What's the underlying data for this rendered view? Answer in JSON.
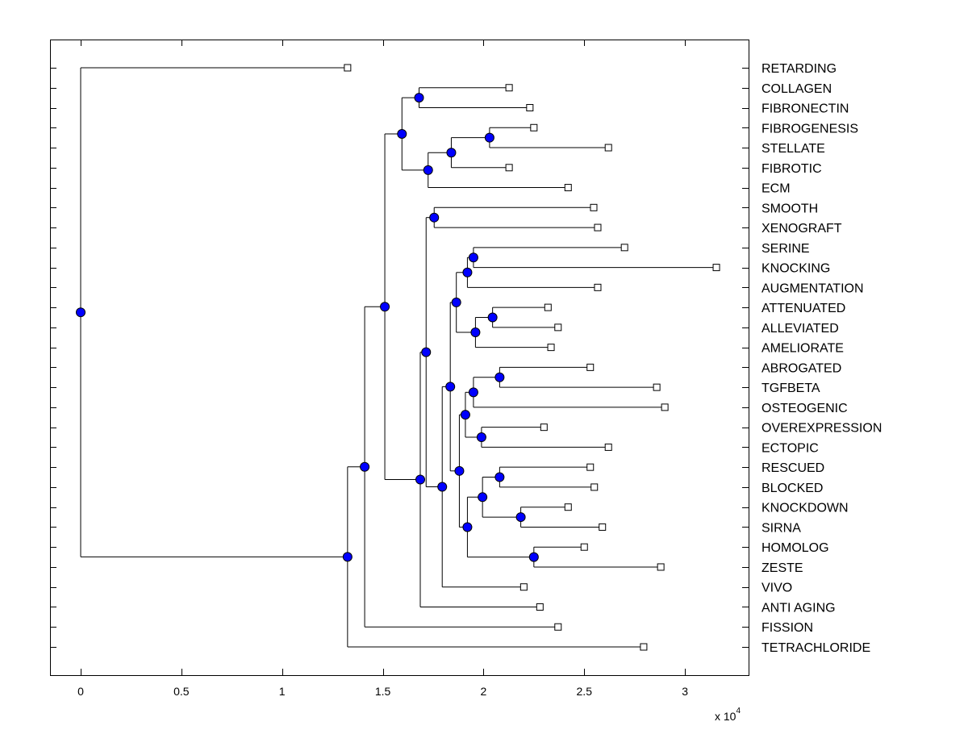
{
  "chart_data": {
    "type": "dendrogram",
    "title": "",
    "xlabel": "",
    "ylabel": "",
    "x_multiplier_label": "x 10",
    "x_multiplier_exponent": "4",
    "xlim": [
      -0.15,
      3.32
    ],
    "xticks": [
      0,
      0.5,
      1,
      1.5,
      2,
      2.5,
      3
    ],
    "xtick_labels": [
      "0",
      "0.5",
      "1",
      "1.5",
      "2",
      "2.5",
      "3"
    ],
    "grid": false,
    "colors": {
      "internal_node": "#0000ff",
      "leaf_marker": "#ffffff",
      "line": "#000000"
    },
    "leaves": [
      "RETARDING",
      "COLLAGEN",
      "FIBRONECTIN",
      "FIBROGENESIS",
      "STELLATE",
      "FIBROTIC",
      "ECM",
      "SMOOTH",
      "XENOGRAFT",
      "SERINE",
      "KNOCKING",
      "AUGMENTATION",
      "ATTENUATED",
      "ALLEVIATED",
      "AMELIORATE",
      "ABROGATED",
      "TGFBETA",
      "OSTEOGENIC",
      "OVEREXPRESSION",
      "ECTOPIC",
      "RESCUED",
      "BLOCKED",
      "KNOCKDOWN",
      "SIRNA",
      "HOMOLOG",
      "ZESTE",
      "VIVO",
      "ANTI AGING",
      "FISSION",
      "TETRACHLORIDE"
    ],
    "tree": {
      "x": 0,
      "children": [
        {
          "leaf": "RETARDING",
          "x": 1.325
        },
        {
          "x": 1.325,
          "children": [
            {
              "x": 1.41,
              "children": [
                {
                  "x": 1.51,
                  "children": [
                    {
                      "x": 1.595,
                      "children": [
                        {
                          "x": 1.68,
                          "children": [
                            {
                              "leaf": "COLLAGEN",
                              "x": 2.127
                            },
                            {
                              "leaf": "FIBRONECTIN",
                              "x": 2.23
                            }
                          ]
                        },
                        {
                          "x": 1.725,
                          "children": [
                            {
                              "x": 1.84,
                              "children": [
                                {
                                  "x": 2.03,
                                  "children": [
                                    {
                                      "leaf": "FIBROGENESIS",
                                      "x": 2.25
                                    },
                                    {
                                      "leaf": "STELLATE",
                                      "x": 2.62
                                    }
                                  ]
                                },
                                {
                                  "leaf": "FIBROTIC",
                                  "x": 2.127
                                }
                              ]
                            },
                            {
                              "leaf": "ECM",
                              "x": 2.42
                            }
                          ]
                        }
                      ]
                    },
                    {
                      "x": 1.686,
                      "children": [
                        {
                          "x": 1.715,
                          "children": [
                            {
                              "x": 1.755,
                              "children": [
                                {
                                  "leaf": "SMOOTH",
                                  "x": 2.547
                                },
                                {
                                  "leaf": "XENOGRAFT",
                                  "x": 2.567
                                }
                              ]
                            },
                            {
                              "x": 1.795,
                              "children": [
                                {
                                  "x": 1.835,
                                  "children": [
                                    {
                                      "x": 1.865,
                                      "children": [
                                        {
                                          "x": 1.92,
                                          "children": [
                                            {
                                              "x": 1.95,
                                              "children": [
                                                {
                                                  "leaf": "SERINE",
                                                  "x": 2.7
                                                },
                                                {
                                                  "leaf": "KNOCKING",
                                                  "x": 3.156
                                                }
                                              ]
                                            },
                                            {
                                              "leaf": "AUGMENTATION",
                                              "x": 2.567
                                            }
                                          ]
                                        },
                                        {
                                          "x": 1.96,
                                          "children": [
                                            {
                                              "x": 2.045,
                                              "children": [
                                                {
                                                  "leaf": "ATTENUATED",
                                                  "x": 2.32
                                                },
                                                {
                                                  "leaf": "ALLEVIATED",
                                                  "x": 2.37
                                                }
                                              ]
                                            },
                                            {
                                              "leaf": "AMELIORATE",
                                              "x": 2.335
                                            }
                                          ]
                                        }
                                      ]
                                    },
                                    {
                                      "x": 1.88,
                                      "children": [
                                        {
                                          "x": 1.91,
                                          "children": [
                                            {
                                              "x": 1.95,
                                              "children": [
                                                {
                                                  "x": 2.08,
                                                  "children": [
                                                    {
                                                      "leaf": "ABROGATED",
                                                      "x": 2.53
                                                    },
                                                    {
                                                      "leaf": "TGFBETA",
                                                      "x": 2.86
                                                    }
                                                  ]
                                                },
                                                {
                                                  "leaf": "OSTEOGENIC",
                                                  "x": 2.9
                                                }
                                              ]
                                            },
                                            {
                                              "x": 1.99,
                                              "children": [
                                                {
                                                  "leaf": "OVEREXPRESSION",
                                                  "x": 2.3
                                                },
                                                {
                                                  "leaf": "ECTOPIC",
                                                  "x": 2.62
                                                }
                                              ]
                                            }
                                          ]
                                        },
                                        {
                                          "x": 1.92,
                                          "children": [
                                            {
                                              "x": 1.995,
                                              "children": [
                                                {
                                                  "x": 2.08,
                                                  "children": [
                                                    {
                                                      "leaf": "RESCUED",
                                                      "x": 2.53
                                                    },
                                                    {
                                                      "leaf": "BLOCKED",
                                                      "x": 2.55
                                                    }
                                                  ]
                                                },
                                                {
                                                  "x": 2.185,
                                                  "children": [
                                                    {
                                                      "leaf": "KNOCKDOWN",
                                                      "x": 2.42
                                                    },
                                                    {
                                                      "leaf": "SIRNA",
                                                      "x": 2.59
                                                    }
                                                  ]
                                                }
                                              ]
                                            },
                                            {
                                              "x": 2.25,
                                              "children": [
                                                {
                                                  "leaf": "HOMOLOG",
                                                  "x": 2.5
                                                },
                                                {
                                                  "leaf": "ZESTE",
                                                  "x": 2.88
                                                }
                                              ]
                                            }
                                          ]
                                        }
                                      ]
                                    }
                                  ]
                                },
                                {
                                  "leaf": "VIVO",
                                  "x": 2.2
                                }
                              ]
                            }
                          ]
                        },
                        {
                          "leaf": "ANTI AGING",
                          "x": 2.28
                        }
                      ]
                    }
                  ]
                },
                {
                  "leaf": "FISSION",
                  "x": 2.37
                }
              ]
            },
            {
              "leaf": "TETRACHLORIDE",
              "x": 2.795
            }
          ]
        }
      ]
    }
  }
}
